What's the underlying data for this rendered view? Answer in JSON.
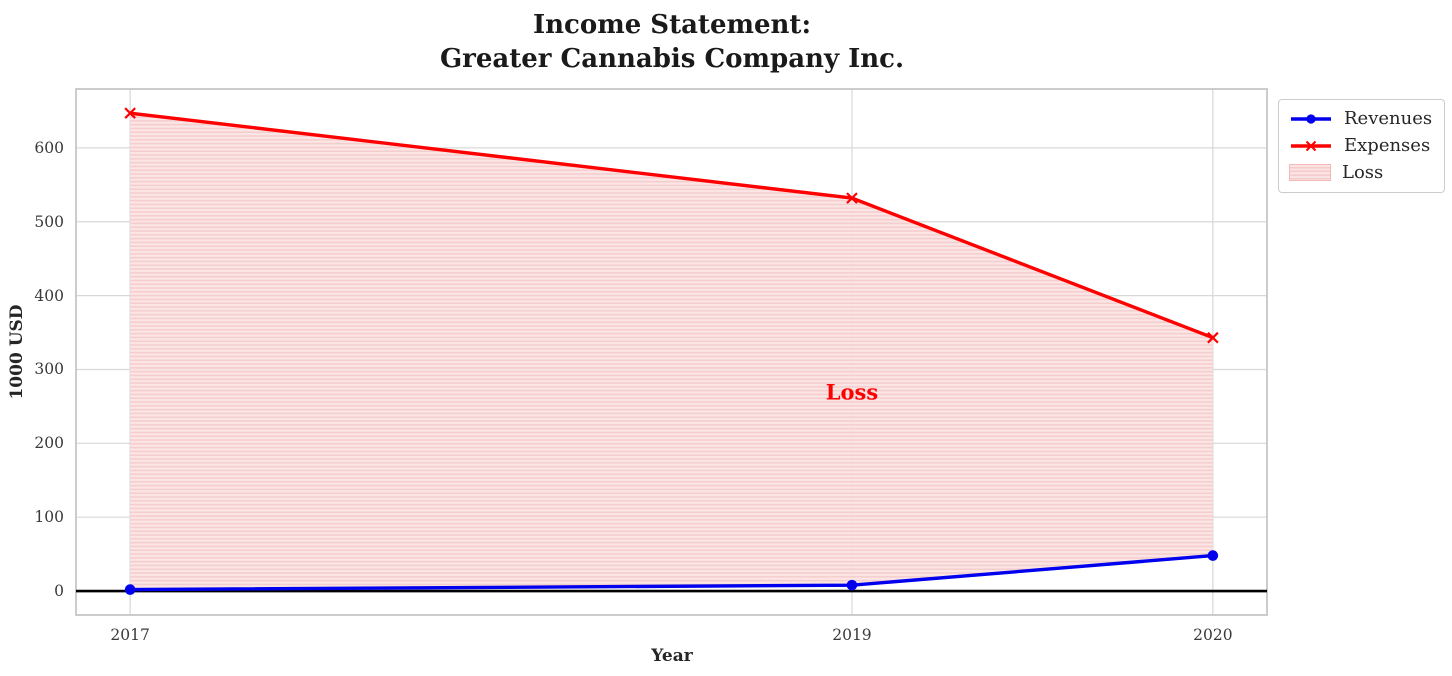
{
  "figure": {
    "title": "Income Statement:\nGreater Cannabis Company Inc.",
    "background": "#ffffff",
    "text_color": "#262626"
  },
  "legend": {
    "entries": [
      {
        "label": "Revenues",
        "swatch": "blue-line-circle-marker"
      },
      {
        "label": "Expenses",
        "swatch": "red-line-x-marker"
      },
      {
        "label": "Loss",
        "swatch": "pink-hatched-patch"
      }
    ],
    "position": "top-right-outside-axes"
  },
  "chart_data": {
    "type": "line",
    "title": "Income Statement:\nGreater Cannabis Company Inc.",
    "xlabel": "Year",
    "ylabel": "1000 USD",
    "x": [
      2017,
      2019,
      2020
    ],
    "series": [
      {
        "name": "Revenues",
        "values": [
          2,
          8,
          48
        ],
        "color": "#0000ee",
        "marker": "circle"
      },
      {
        "name": "Expenses",
        "values": [
          647,
          532,
          343
        ],
        "color": "#ff0000",
        "marker": "x"
      }
    ],
    "loss_area": {
      "label": "Loss",
      "between": [
        "Revenues",
        "Expenses"
      ],
      "style": "pink horizontal hatch",
      "fill_base": "#fbe3e3",
      "fill_stripe": "#f6cbcb"
    },
    "annotation": {
      "text": "Loss",
      "x": 2019,
      "y": 270,
      "color": "#ff0000"
    },
    "xticks": [
      2017,
      2019,
      2020
    ],
    "yticks": [
      0,
      100,
      200,
      300,
      400,
      500,
      600
    ],
    "xlim": [
      2016.85,
      2020.15
    ],
    "ylim": [
      -32.4,
      679.7
    ],
    "grid": true,
    "grid_color": "#d8d8d8",
    "spine_color": "#c6c6c6",
    "zero_line": {
      "y": 0,
      "color": "#000000"
    },
    "legend_position": "upper right outside"
  }
}
